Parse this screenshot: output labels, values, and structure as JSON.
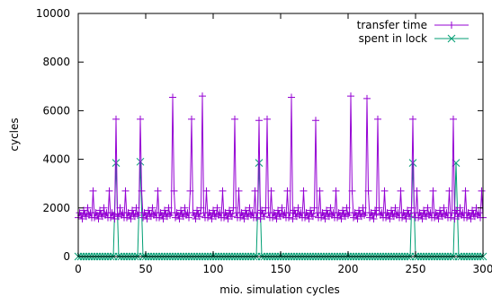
{
  "chart_data": {
    "type": "line",
    "xlabel": "mio. simulation cycles",
    "ylabel": "cycles",
    "xlim": [
      0,
      300
    ],
    "ylim": [
      0,
      10000
    ],
    "xticks": [
      0,
      50,
      100,
      150,
      200,
      250,
      300
    ],
    "xtick_labels": [
      "0",
      "50",
      "100",
      "150",
      "200",
      "250",
      "300"
    ],
    "yticks": [
      0,
      2000,
      4000,
      6000,
      8000,
      10000
    ],
    "ytick_labels": [
      "0",
      "2000",
      "4000",
      "6000",
      "8000",
      "10000"
    ],
    "legend_position": "top-right",
    "grid": false,
    "series": [
      {
        "name": "transfer time",
        "color": "#9400d3",
        "marker": "plus",
        "sample_interval": 1,
        "baseline_pattern": [
          1600,
          1800,
          1700,
          1550,
          1900,
          1750,
          1650,
          2000,
          1700,
          1800,
          1600,
          2700
        ],
        "spikes": [
          {
            "x": 28,
            "y": 5650
          },
          {
            "x": 46,
            "y": 5650
          },
          {
            "x": 70,
            "y": 6550
          },
          {
            "x": 84,
            "y": 5650
          },
          {
            "x": 92,
            "y": 6600
          },
          {
            "x": 116,
            "y": 5650
          },
          {
            "x": 134,
            "y": 5600
          },
          {
            "x": 140,
            "y": 5650
          },
          {
            "x": 158,
            "y": 6550
          },
          {
            "x": 176,
            "y": 5600
          },
          {
            "x": 202,
            "y": 6600
          },
          {
            "x": 214,
            "y": 6500
          },
          {
            "x": 222,
            "y": 5650
          },
          {
            "x": 248,
            "y": 5650
          },
          {
            "x": 278,
            "y": 5650
          }
        ]
      },
      {
        "name": "spent in lock",
        "color": "#009e73",
        "marker": "x",
        "sample_interval": 2,
        "baseline_value": 0,
        "spikes": [
          {
            "x": 28,
            "y": 3850
          },
          {
            "x": 46,
            "y": 3900
          },
          {
            "x": 134,
            "y": 3850
          },
          {
            "x": 248,
            "y": 3850
          },
          {
            "x": 280,
            "y": 3850
          }
        ]
      }
    ]
  }
}
